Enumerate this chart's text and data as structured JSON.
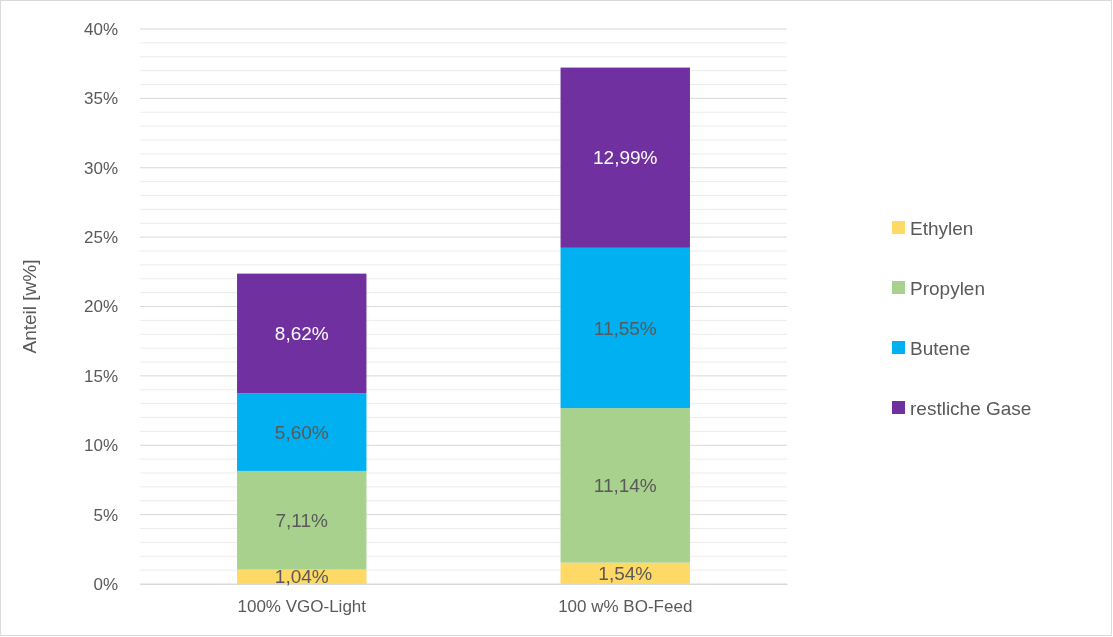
{
  "chart_data": {
    "type": "bar",
    "stacked": true,
    "ylabel": "Anteil [w%]",
    "categories": [
      "100% VGO-Light",
      "100 w% BO-Feed"
    ],
    "series": [
      {
        "name": "Ethylen",
        "color": "#ffd966",
        "values": [
          1.04,
          1.54
        ],
        "value_labels": [
          "1,04%",
          "1,54%"
        ]
      },
      {
        "name": "Propylen",
        "color": "#a9d18e",
        "values": [
          7.11,
          11.14
        ],
        "value_labels": [
          "7,11%",
          "11,14%"
        ]
      },
      {
        "name": "Butene",
        "color": "#00b0f0",
        "values": [
          5.6,
          11.55
        ],
        "value_labels": [
          "5,60%",
          "11,55%"
        ]
      },
      {
        "name": "restliche Gase",
        "color": "#7030a0",
        "values": [
          8.62,
          12.99
        ],
        "value_labels": [
          "8,62%",
          "12,99%"
        ]
      }
    ],
    "ylim": [
      0,
      40
    ],
    "yticks": [
      {
        "value": 0,
        "label": "0%"
      },
      {
        "value": 1,
        "label": null
      },
      {
        "value": 2,
        "label": null
      },
      {
        "value": 3,
        "label": null
      },
      {
        "value": 4,
        "label": null
      },
      {
        "value": 5,
        "label": "5%"
      },
      {
        "value": 6,
        "label": null
      },
      {
        "value": 7,
        "label": null
      },
      {
        "value": 8,
        "label": null
      },
      {
        "value": 9,
        "label": null
      },
      {
        "value": 10,
        "label": "10%"
      },
      {
        "value": 11,
        "label": null
      },
      {
        "value": 12,
        "label": null
      },
      {
        "value": 13,
        "label": null
      },
      {
        "value": 14,
        "label": null
      },
      {
        "value": 15,
        "label": "15%"
      },
      {
        "value": 16,
        "label": null
      },
      {
        "value": 17,
        "label": null
      },
      {
        "value": 18,
        "label": null
      },
      {
        "value": 19,
        "label": null
      },
      {
        "value": 20,
        "label": "20%"
      },
      {
        "value": 21,
        "label": null
      },
      {
        "value": 22,
        "label": null
      },
      {
        "value": 23,
        "label": null
      },
      {
        "value": 24,
        "label": null
      },
      {
        "value": 25,
        "label": "25%"
      },
      {
        "value": 26,
        "label": null
      },
      {
        "value": 27,
        "label": null
      },
      {
        "value": 28,
        "label": null
      },
      {
        "value": 29,
        "label": null
      },
      {
        "value": 30,
        "label": "30%"
      },
      {
        "value": 31,
        "label": null
      },
      {
        "value": 32,
        "label": null
      },
      {
        "value": 33,
        "label": null
      },
      {
        "value": 34,
        "label": null
      },
      {
        "value": 35,
        "label": "35%"
      },
      {
        "value": 36,
        "label": null
      },
      {
        "value": 37,
        "label": null
      },
      {
        "value": 38,
        "label": null
      },
      {
        "value": 39,
        "label": null
      },
      {
        "value": 40,
        "label": "40%"
      }
    ],
    "grid": "y",
    "legend": "right"
  }
}
